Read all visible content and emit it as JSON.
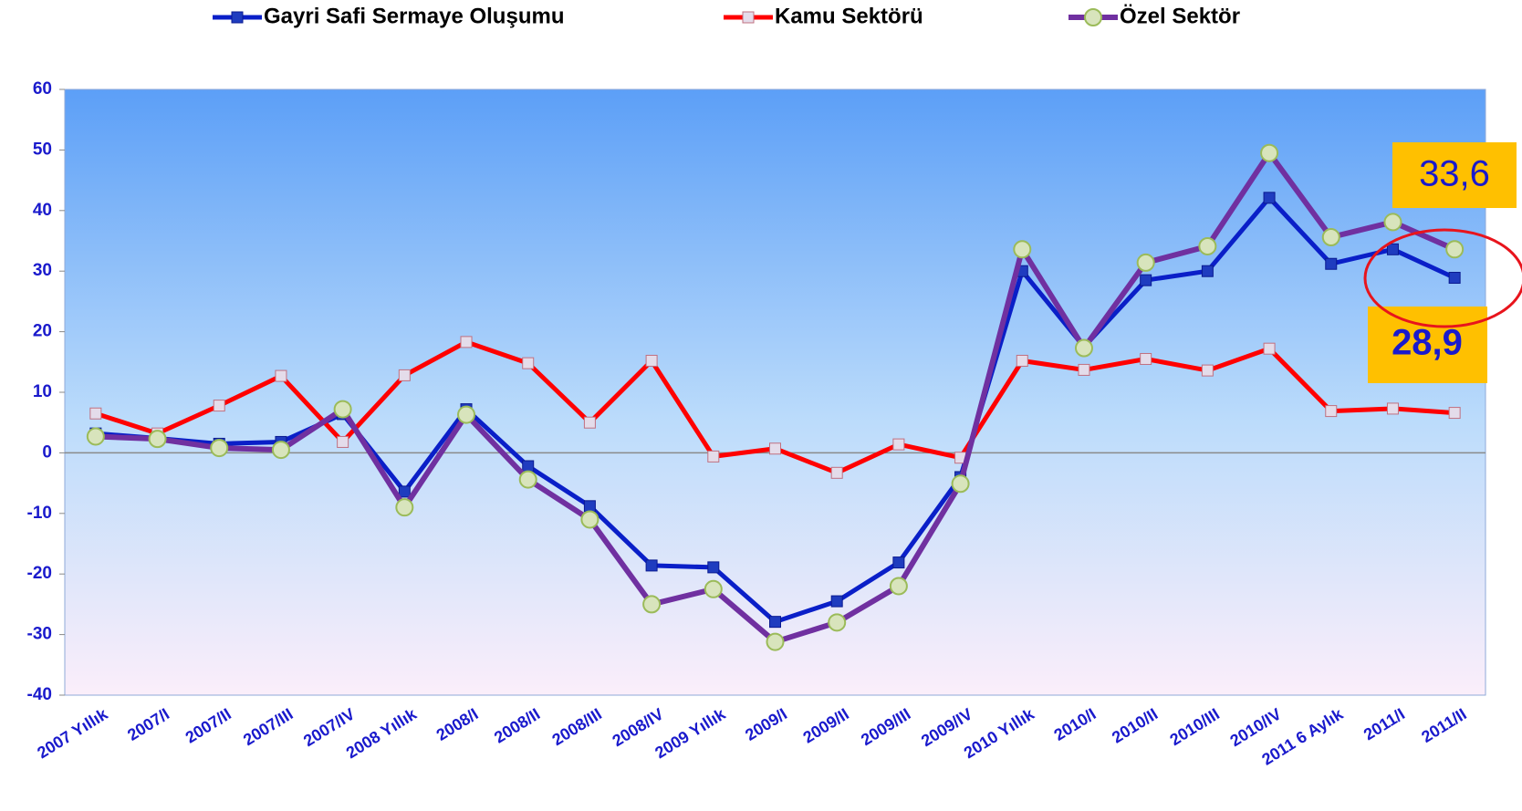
{
  "chart_data": {
    "type": "line",
    "categories": [
      "2007 Yıllık",
      "2007/I",
      "2007/II",
      "2007/III",
      "2007/IV",
      "2008 Yıllık",
      "2008/I",
      "2008/II",
      "2008/III",
      "2008/IV",
      "2009 Yıllık",
      "2009/I",
      "2009/II",
      "2009/III",
      "2009/IV",
      "2010 Yıllık",
      "2010/I",
      "2010/II",
      "2010/III",
      "2010/IV",
      "2011 6 Aylık",
      "2011/I",
      "2011/II"
    ],
    "series": [
      {
        "name": "Gayri Safi Sermaye Oluşumu",
        "color": "#0a1fc8",
        "values": [
          3.2,
          2.4,
          1.5,
          1.8,
          6.4,
          -6.4,
          7.2,
          -2.2,
          -8.8,
          -18.6,
          -18.9,
          -27.9,
          -24.5,
          -18.1,
          -4,
          30,
          17.5,
          28.5,
          30,
          42.1,
          31.2,
          33.6,
          28.9
        ]
      },
      {
        "name": "Kamu Sektörü",
        "color": "#ff0000",
        "values": [
          6.5,
          3.2,
          7.8,
          12.7,
          1.8,
          12.8,
          18.3,
          14.8,
          5,
          15.2,
          -0.6,
          0.7,
          -3.3,
          1.4,
          -0.8,
          15.2,
          13.7,
          15.5,
          13.6,
          17.2,
          6.9,
          7.3,
          6.6
        ]
      },
      {
        "name": "Özel Sektör",
        "color": "#7030a0",
        "values": [
          2.7,
          2.3,
          0.8,
          0.5,
          7.2,
          -9,
          6.3,
          -4.4,
          -11,
          -25,
          -22.5,
          -31.2,
          -28,
          -22,
          -5.1,
          33.6,
          17.3,
          31.4,
          34.1,
          49.5,
          35.6,
          38.1,
          33.6
        ]
      }
    ],
    "ylim": [
      -40,
      60
    ],
    "yticks": [
      -40,
      -30,
      -20,
      -10,
      0,
      10,
      20,
      30,
      40,
      50,
      60
    ],
    "annotations": [
      "33,6",
      "28,9"
    ]
  }
}
